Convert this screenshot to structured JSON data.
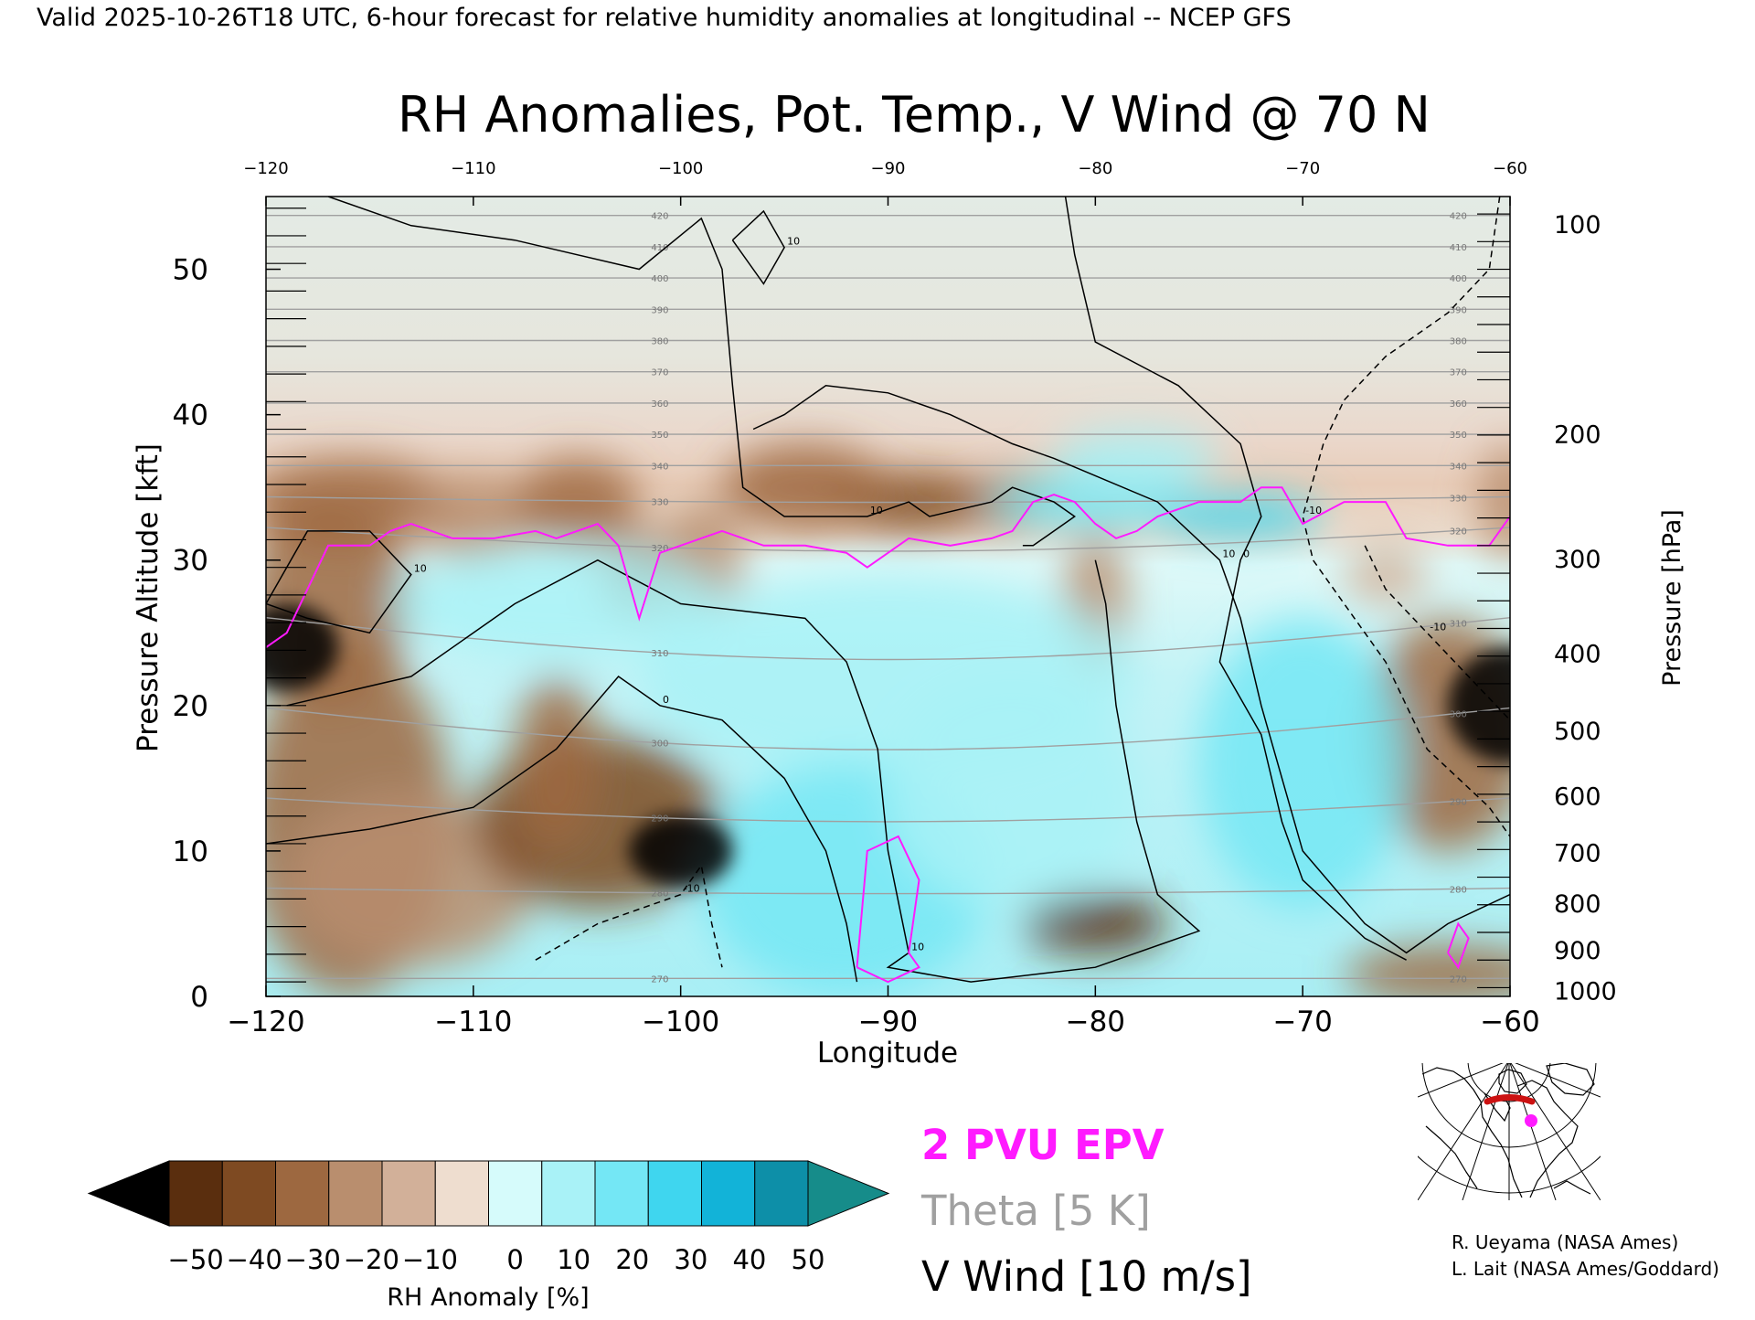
{
  "header": {
    "valid_line": "Valid 2025-10-26T18 UTC, 6-hour forecast for relative humidity anomalies at longitudinal -- NCEP GFS"
  },
  "chart_data": {
    "type": "heatmap",
    "title": "RH Anomalies, Pot. Temp., V Wind @ 70 N",
    "xlabel": "Longitude",
    "ylabel": "Pressure Altitude [kft]",
    "ylabel_right": "Pressure [hPa]",
    "xlim": [
      -120,
      -60
    ],
    "ylim": [
      0,
      55
    ],
    "x_ticks": [
      -120,
      -110,
      -100,
      -90,
      -80,
      -70,
      -60
    ],
    "y_ticks": [
      0,
      10,
      20,
      30,
      40,
      50
    ],
    "pressure_ticks": [
      {
        "label": "100",
        "alt": 53.1
      },
      {
        "label": "200",
        "alt": 38.7
      },
      {
        "label": "300",
        "alt": 30.1
      },
      {
        "label": "400",
        "alt": 23.6
      },
      {
        "label": "500",
        "alt": 18.3
      },
      {
        "label": "600",
        "alt": 13.8
      },
      {
        "label": "700",
        "alt": 9.9
      },
      {
        "label": "800",
        "alt": 6.4
      },
      {
        "label": "900",
        "alt": 3.2
      },
      {
        "label": "1000",
        "alt": 0.4
      }
    ],
    "anomaly_features": [
      {
        "lon": -119,
        "alt": 24,
        "value": -55,
        "rx": 2.5,
        "ry": 3
      },
      {
        "lon": -117,
        "alt": 27,
        "value": -25,
        "rx": 4,
        "ry": 7
      },
      {
        "lon": -116,
        "alt": 34,
        "value": -22,
        "rx": 5,
        "ry": 3
      },
      {
        "lon": -116,
        "alt": 12,
        "value": -22,
        "rx": 5,
        "ry": 12
      },
      {
        "lon": -113,
        "alt": 8,
        "value": -15,
        "rx": 6,
        "ry": 6
      },
      {
        "lon": -110,
        "alt": 33,
        "value": -15,
        "rx": 3,
        "ry": 3
      },
      {
        "lon": -105,
        "alt": 34,
        "value": -30,
        "rx": 3,
        "ry": 3
      },
      {
        "lon": -102,
        "alt": 29,
        "value": -30,
        "rx": 2,
        "ry": 3
      },
      {
        "lon": -99,
        "alt": 30,
        "value": -20,
        "rx": 2,
        "ry": 4
      },
      {
        "lon": -104,
        "alt": 12,
        "value": -40,
        "rx": 6,
        "ry": 6
      },
      {
        "lon": -100,
        "alt": 10,
        "value": -55,
        "rx": 2.5,
        "ry": 2.5
      },
      {
        "lon": -106,
        "alt": 16,
        "value": -25,
        "rx": 2,
        "ry": 6
      },
      {
        "lon": -89,
        "alt": 34,
        "value": -40,
        "rx": 4,
        "ry": 2
      },
      {
        "lon": -94,
        "alt": 35,
        "value": -25,
        "rx": 4,
        "ry": 3
      },
      {
        "lon": -84,
        "alt": 34,
        "value": -25,
        "rx": 2,
        "ry": 2
      },
      {
        "lon": -80,
        "alt": 5,
        "value": -45,
        "rx": 3.5,
        "ry": 2
      },
      {
        "lon": -80,
        "alt": 27,
        "value": -12,
        "rx": 1.5,
        "ry": 5
      },
      {
        "lon": -66,
        "alt": 29,
        "value": -10,
        "rx": 2,
        "ry": 2
      },
      {
        "lon": -63,
        "alt": 18,
        "value": -30,
        "rx": 4,
        "ry": 8
      },
      {
        "lon": -60,
        "alt": 20,
        "value": -55,
        "rx": 3,
        "ry": 4
      },
      {
        "lon": -63,
        "alt": 1.5,
        "value": -25,
        "rx": 5,
        "ry": 2
      },
      {
        "lon": -60,
        "alt": 34,
        "value": -15,
        "rx": 1.5,
        "ry": 4
      },
      {
        "lon": -106,
        "alt": 27,
        "value": 10,
        "rx": 8,
        "ry": 4
      },
      {
        "lon": -90,
        "alt": 22,
        "value": 10,
        "rx": 12,
        "ry": 7
      },
      {
        "lon": -92,
        "alt": 8,
        "value": 22,
        "rx": 7,
        "ry": 8
      },
      {
        "lon": -80,
        "alt": 34,
        "value": 25,
        "rx": 5,
        "ry": 2
      },
      {
        "lon": -73,
        "alt": 33,
        "value": 35,
        "rx": 4,
        "ry": 1.5
      },
      {
        "lon": -70,
        "alt": 16,
        "value": 20,
        "rx": 5,
        "ry": 10
      },
      {
        "lon": -78,
        "alt": 37,
        "value": 15,
        "rx": 4,
        "ry": 2
      },
      {
        "lon": -84,
        "alt": 14,
        "value": 18,
        "rx": 6,
        "ry": 8
      }
    ],
    "theta_levels": [
      270,
      280,
      290,
      300,
      310,
      320,
      330,
      340,
      350,
      360,
      370,
      380,
      390,
      400,
      410,
      420
    ],
    "wind_contours": [
      {
        "label": "0",
        "style": "solid",
        "points": [
          [
            -120,
            10.5
          ],
          [
            -115,
            11.5
          ],
          [
            -110,
            13
          ],
          [
            -106,
            17
          ],
          [
            -103,
            22
          ],
          [
            -101,
            20
          ],
          [
            -98,
            19
          ],
          [
            -95,
            15
          ],
          [
            -93,
            10
          ],
          [
            -92,
            5
          ],
          [
            -91.5,
            1
          ]
        ]
      },
      {
        "label": "10",
        "style": "solid",
        "points": [
          [
            -120,
            27
          ],
          [
            -118,
            32
          ],
          [
            -115,
            32
          ],
          [
            -113,
            29
          ],
          [
            -115,
            25
          ],
          [
            -118,
            26
          ],
          [
            -120,
            27
          ]
        ]
      },
      {
        "label": "10",
        "style": "solid",
        "points": [
          [
            -119,
            20
          ],
          [
            -113,
            22
          ],
          [
            -108,
            27
          ],
          [
            -104,
            30
          ],
          [
            -100,
            27
          ],
          [
            -97,
            26.5
          ],
          [
            -94,
            26
          ],
          [
            -92,
            23
          ],
          [
            -90.5,
            17
          ],
          [
            -90,
            10
          ],
          [
            -89,
            3
          ],
          [
            -90,
            2
          ],
          [
            -86,
            1
          ],
          [
            -80,
            2
          ],
          [
            -75,
            4.5
          ],
          [
            -77,
            7
          ],
          [
            -78,
            12
          ],
          [
            -79,
            20
          ],
          [
            -79.5,
            27
          ],
          [
            -80,
            30
          ]
        ]
      },
      {
        "label": "10",
        "style": "solid",
        "points": [
          [
            -117,
            55
          ],
          [
            -113,
            53
          ],
          [
            -108,
            52
          ],
          [
            -102,
            50
          ],
          [
            -99,
            53.5
          ],
          [
            -98,
            50
          ],
          [
            -97.5,
            42
          ],
          [
            -97,
            35
          ],
          [
            -95,
            33
          ],
          [
            -91,
            33
          ],
          [
            -89,
            34
          ],
          [
            -88,
            33
          ],
          [
            -85,
            34
          ],
          [
            -84,
            35
          ],
          [
            -82,
            34
          ],
          [
            -81,
            33
          ],
          [
            -83,
            31
          ],
          [
            -83.5,
            31
          ]
        ]
      },
      {
        "label": "10",
        "style": "solid",
        "points": [
          [
            -97.5,
            52
          ],
          [
            -96,
            54
          ],
          [
            -95,
            51.5
          ],
          [
            -96,
            49
          ],
          [
            -97.5,
            52
          ]
        ]
      },
      {
        "label": "10",
        "style": "solid",
        "points": [
          [
            -96.5,
            39
          ],
          [
            -95,
            40
          ],
          [
            -93,
            42
          ],
          [
            -90,
            41.5
          ],
          [
            -87,
            40
          ],
          [
            -84,
            38
          ],
          [
            -82,
            37
          ],
          [
            -77,
            34
          ],
          [
            -74,
            30
          ],
          [
            -73,
            26
          ],
          [
            -72,
            20
          ],
          [
            -71,
            15
          ],
          [
            -70,
            10
          ],
          [
            -67,
            5
          ],
          [
            -65,
            3
          ],
          [
            -63,
            5
          ],
          [
            -60,
            7
          ]
        ]
      },
      {
        "label": "0",
        "style": "solid",
        "points": [
          [
            -81.5,
            55.5
          ],
          [
            -81,
            51
          ],
          [
            -80,
            45
          ],
          [
            -76,
            42
          ],
          [
            -73,
            38
          ],
          [
            -72,
            33
          ],
          [
            -73,
            30
          ],
          [
            -74,
            23
          ],
          [
            -72,
            18
          ],
          [
            -71,
            12
          ],
          [
            -70,
            8
          ],
          [
            -67,
            4
          ],
          [
            -65,
            2.5
          ]
        ]
      },
      {
        "label": "-10",
        "style": "dashed",
        "points": [
          [
            -60.5,
            55
          ],
          [
            -61,
            50
          ],
          [
            -63,
            47
          ],
          [
            -66,
            44
          ],
          [
            -68,
            41
          ],
          [
            -69,
            38
          ],
          [
            -70,
            33
          ],
          [
            -69.5,
            30
          ],
          [
            -68,
            27
          ],
          [
            -66,
            23
          ],
          [
            -64,
            17
          ],
          [
            -61,
            13
          ],
          [
            -60,
            11
          ]
        ]
      },
      {
        "label": "-10",
        "style": "dashed",
        "points": [
          [
            -107,
            2.5
          ],
          [
            -104,
            5
          ],
          [
            -102,
            6
          ],
          [
            -100,
            7
          ],
          [
            -99,
            9
          ],
          [
            -98.5,
            5
          ],
          [
            -98,
            2
          ]
        ]
      },
      {
        "label": "-10",
        "style": "dashed",
        "points": [
          [
            -67,
            31
          ],
          [
            -66,
            28
          ],
          [
            -64,
            25
          ],
          [
            -62,
            22
          ],
          [
            -60,
            19
          ]
        ]
      }
    ],
    "pvu_line": {
      "lon": [
        -120,
        -119,
        -118,
        -117,
        -115,
        -114,
        -113,
        -111,
        -109,
        -107,
        -106,
        -104,
        -103,
        -102,
        -101,
        -100,
        -98,
        -96,
        -94,
        -92,
        -91,
        -89,
        -87,
        -85,
        -84,
        -83,
        -82,
        -81,
        -80,
        -79,
        -78,
        -77,
        -75,
        -73,
        -72,
        -71,
        -70,
        -68,
        -66,
        -65,
        -63,
        -61,
        -60
      ],
      "alt": [
        24,
        25,
        28,
        31,
        31,
        32,
        32.5,
        31.5,
        31.5,
        32,
        31.5,
        32.5,
        31,
        26,
        30.5,
        31,
        32,
        31,
        31,
        30.5,
        29.5,
        31.5,
        31,
        31.5,
        32,
        34,
        34.5,
        34,
        32.5,
        31.5,
        32,
        33,
        34,
        34,
        35,
        35,
        32.5,
        34,
        34,
        31.5,
        31,
        31,
        33
      ]
    },
    "pvu_loops": [
      [
        [
          -91.5,
          2
        ],
        [
          -91,
          10
        ],
        [
          -89.5,
          11
        ],
        [
          -88.5,
          8
        ],
        [
          -89,
          3
        ],
        [
          -88.5,
          2
        ],
        [
          -90,
          1
        ],
        [
          -91.5,
          2
        ]
      ],
      [
        [
          -63,
          3
        ],
        [
          -62.5,
          5
        ],
        [
          -62,
          4
        ],
        [
          -62.5,
          2
        ],
        [
          -63,
          3
        ]
      ]
    ],
    "colorbar": {
      "ticks": [
        -50,
        -40,
        -30,
        -20,
        -10,
        0,
        10,
        20,
        30,
        40,
        50
      ],
      "label": "RH Anomaly [%]",
      "colors": [
        "#5a2e0e",
        "#7e4a22",
        "#9d6840",
        "#b98e6e",
        "#d2b099",
        "#eeddcf",
        "#d6fbfb",
        "#a9f2f7",
        "#74e7f5",
        "#3fd6ef",
        "#12b3d8",
        "#0d8fa8"
      ],
      "under_color": "#000000",
      "over_color": "#168c8a"
    },
    "legend": {
      "pvu": "2 PVU EPV",
      "theta": "Theta [5 K]",
      "vwind": "V Wind [10 m/s]",
      "pvu_color": "#ff1aff",
      "theta_color": "#a0a0a0",
      "vwind_color": "#000000"
    }
  },
  "credits": {
    "line1": "R. Ueyama (NASA Ames)",
    "line2": "L. Lait (NASA Ames/Goddard)"
  },
  "inset_map": {
    "marker_color": "#ff1aff",
    "track_color": "#cc1111"
  }
}
